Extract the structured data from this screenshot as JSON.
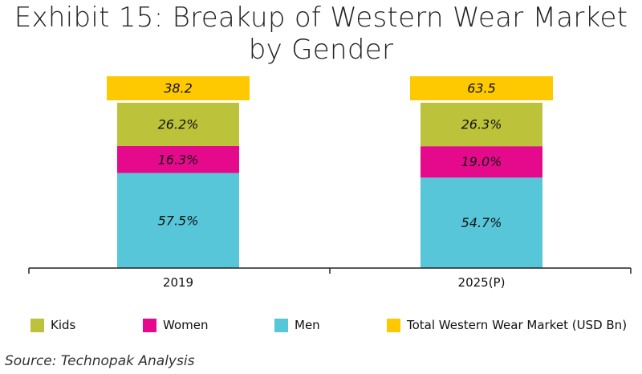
{
  "title_line1": "Exhibit 15: Breakup of Western Wear Market",
  "title_line2": "by Gender",
  "source": "Source: Technopak Analysis",
  "colors": {
    "kids": "#bcc23a",
    "women": "#e5098b",
    "men": "#57c6d9",
    "total": "#ffc902"
  },
  "legend": [
    {
      "label": "Kids",
      "color_key": "kids"
    },
    {
      "label": "Women",
      "color_key": "women"
    },
    {
      "label": "Men",
      "color_key": "men"
    },
    {
      "label": "Total Western Wear Market (USD Bn)",
      "color_key": "total"
    }
  ],
  "chart_data": {
    "type": "bar",
    "stacked": true,
    "percent_stacked": true,
    "categories": [
      "2019",
      "2025(P)"
    ],
    "series": [
      {
        "name": "Men",
        "values": [
          57.5,
          54.7
        ],
        "labels": [
          "57.5%",
          "54.7%"
        ]
      },
      {
        "name": "Women",
        "values": [
          16.3,
          19.0
        ],
        "labels": [
          "16.3%",
          "19.0%"
        ]
      },
      {
        "name": "Kids",
        "values": [
          26.2,
          26.3
        ],
        "labels": [
          "26.2%",
          "26.3%"
        ]
      }
    ],
    "totals": {
      "name": "Total Western Wear Market (USD Bn)",
      "values": [
        38.2,
        63.5
      ],
      "labels": [
        "38.2",
        "63.5"
      ]
    },
    "xlabel": "",
    "ylabel": "",
    "ylim": [
      0,
      100
    ],
    "grid": false,
    "legend_position": "bottom"
  }
}
